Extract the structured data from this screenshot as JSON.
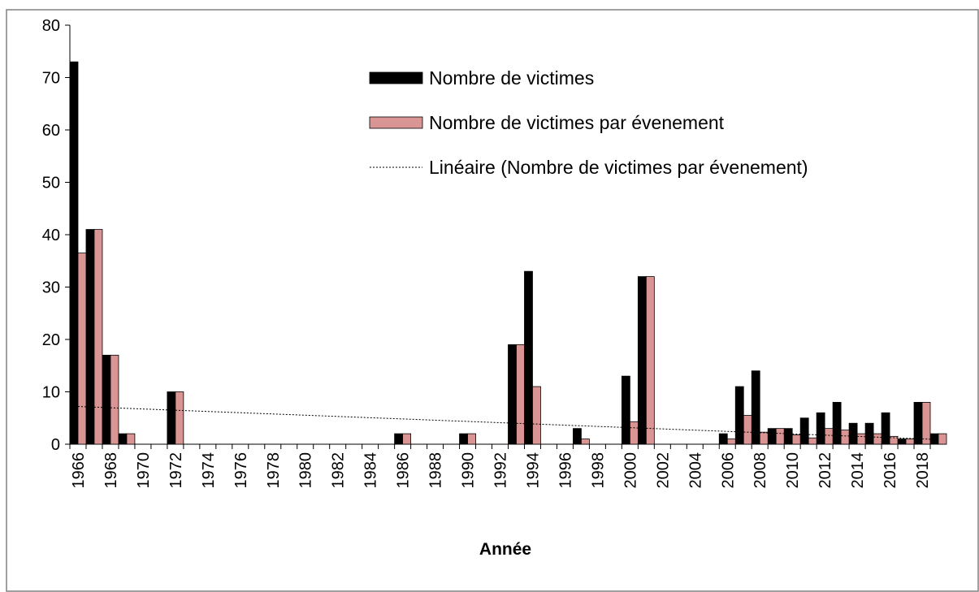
{
  "chart_data": {
    "type": "bar",
    "x_label": "Année",
    "categories": [
      "1966",
      null,
      "1968",
      null,
      "1970",
      null,
      "1972",
      null,
      "1974",
      null,
      "1976",
      null,
      "1978",
      null,
      "1980",
      null,
      "1982",
      null,
      "1984",
      null,
      "1986",
      null,
      "1988",
      null,
      "1990",
      null,
      "1992",
      null,
      "1994",
      null,
      "1996",
      null,
      "1998",
      null,
      "2000",
      null,
      "2002",
      null,
      "2004",
      null,
      "2006",
      null,
      "2008",
      null,
      "2010",
      null,
      "2012",
      null,
      "2014",
      null,
      "2016",
      null,
      "2018",
      null
    ],
    "series": [
      {
        "name": "Nombre de victimes",
        "color": "#000000",
        "values": [
          73,
          41,
          17,
          2,
          0,
          0,
          10,
          0,
          0,
          0,
          0,
          0,
          0,
          0,
          0,
          0,
          0,
          0,
          0,
          0,
          2,
          0,
          0,
          0,
          2,
          0,
          0,
          19,
          33,
          0,
          0,
          3,
          0,
          0,
          13,
          32,
          0,
          0,
          0,
          0,
          2,
          11,
          14,
          3,
          3,
          5,
          6,
          8,
          4,
          4,
          6,
          1,
          8,
          2
        ]
      },
      {
        "name": "Nombre de victimes par évenement",
        "color": "#d99594",
        "values": [
          36.5,
          41,
          17,
          2,
          0,
          0,
          10,
          0,
          0,
          0,
          0,
          0,
          0,
          0,
          0,
          0,
          0,
          0,
          0,
          0,
          2,
          0,
          0,
          0,
          2,
          0,
          0,
          19,
          11,
          0,
          0,
          1,
          0,
          0,
          4.3,
          32,
          0,
          0,
          0,
          0,
          1,
          5.5,
          2.3,
          3,
          1.8,
          1.2,
          3,
          2.7,
          2,
          2,
          1.5,
          1,
          8,
          2
        ]
      }
    ],
    "trend": {
      "name": "Linéaire (Nombre de victimes par évenement)",
      "color": "#000000",
      "x": [
        1966,
        2019
      ],
      "values": [
        7.2,
        0.9
      ]
    },
    "ylim": [
      0,
      80
    ],
    "yticks": [
      0,
      10,
      20,
      30,
      40,
      50,
      60,
      70,
      80
    ],
    "grid": false
  }
}
